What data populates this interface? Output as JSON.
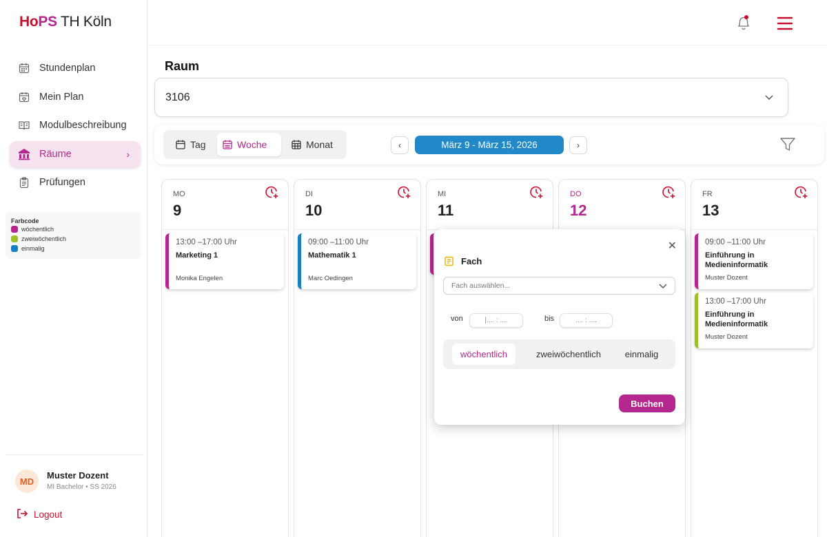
{
  "brand": {
    "part1": "Ho",
    "part2": "PS",
    "part3": " TH Köln"
  },
  "sidebar": {
    "items": [
      {
        "label": "Stundenplan",
        "icon": "calendar-icon"
      },
      {
        "label": "Mein Plan",
        "icon": "calendar-heart-icon"
      },
      {
        "label": "Modulbeschreibung",
        "icon": "book-open-icon"
      },
      {
        "label": "Räume",
        "icon": "building-icon",
        "active": true
      },
      {
        "label": "Prüfungen",
        "icon": "clipboard-icon"
      }
    ],
    "legend": {
      "title": "Farbcode",
      "items": [
        {
          "label": "wöchentlich",
          "color": "#b3278f"
        },
        {
          "label": "zweiwöchentlich",
          "color": "#9cbf2a"
        },
        {
          "label": "einmalig",
          "color": "#1a7fbf"
        }
      ]
    },
    "user": {
      "initials": "MD",
      "name": "Muster Dozent",
      "sub": "MI Bachelor • SS 2026"
    },
    "logout_label": "Logout"
  },
  "main": {
    "room_label": "Raum",
    "room_value": "3106",
    "views": {
      "day": "Tag",
      "week": "Woche",
      "month": "Monat",
      "active": "week"
    },
    "date_range": "März 9 - März 15, 2026"
  },
  "calendar": {
    "days": [
      {
        "abbr": "MO",
        "num": "9",
        "today": false,
        "events": [
          {
            "time": "13:00 –17:00 Uhr",
            "name": "Marketing 1",
            "person": "Monika Engelen",
            "type": "wöchentlich"
          }
        ]
      },
      {
        "abbr": "DI",
        "num": "10",
        "today": false,
        "events": [
          {
            "time": "09:00 –11:00 Uhr",
            "name": "Mathematik 1",
            "person": "Marc Oedingen",
            "type": "einmalig"
          }
        ]
      },
      {
        "abbr": "MI",
        "num": "11",
        "today": false,
        "events": []
      },
      {
        "abbr": "DO",
        "num": "12",
        "today": true,
        "events": []
      },
      {
        "abbr": "FR",
        "num": "13",
        "today": false,
        "events": [
          {
            "time": "09:00 –11:00 Uhr",
            "name": "Einführung in Medieninformatik",
            "person": "Muster Dozent",
            "type": "wöchentlich"
          },
          {
            "time": "13:00 –17:00 Uhr",
            "name": "Einführung in Medieninformatik",
            "person": "Muster Dozent",
            "type": "zweiwöchentlich"
          }
        ]
      }
    ]
  },
  "modal": {
    "title": "Fach",
    "select_placeholder": "Fach auswählen...",
    "von_label": "von",
    "bis_label": "bis",
    "von_placeholder": "|.... : ....",
    "bis_placeholder": ".... : ....",
    "frequency": [
      "wöchentlich",
      "zweiwöchentlich",
      "einmalig"
    ],
    "frequency_selected": "wöchentlich",
    "submit_label": "Buchen"
  },
  "colors": {
    "accent": "#b3278f",
    "brand_red": "#c8102e",
    "date_blue": "#2289c9"
  }
}
